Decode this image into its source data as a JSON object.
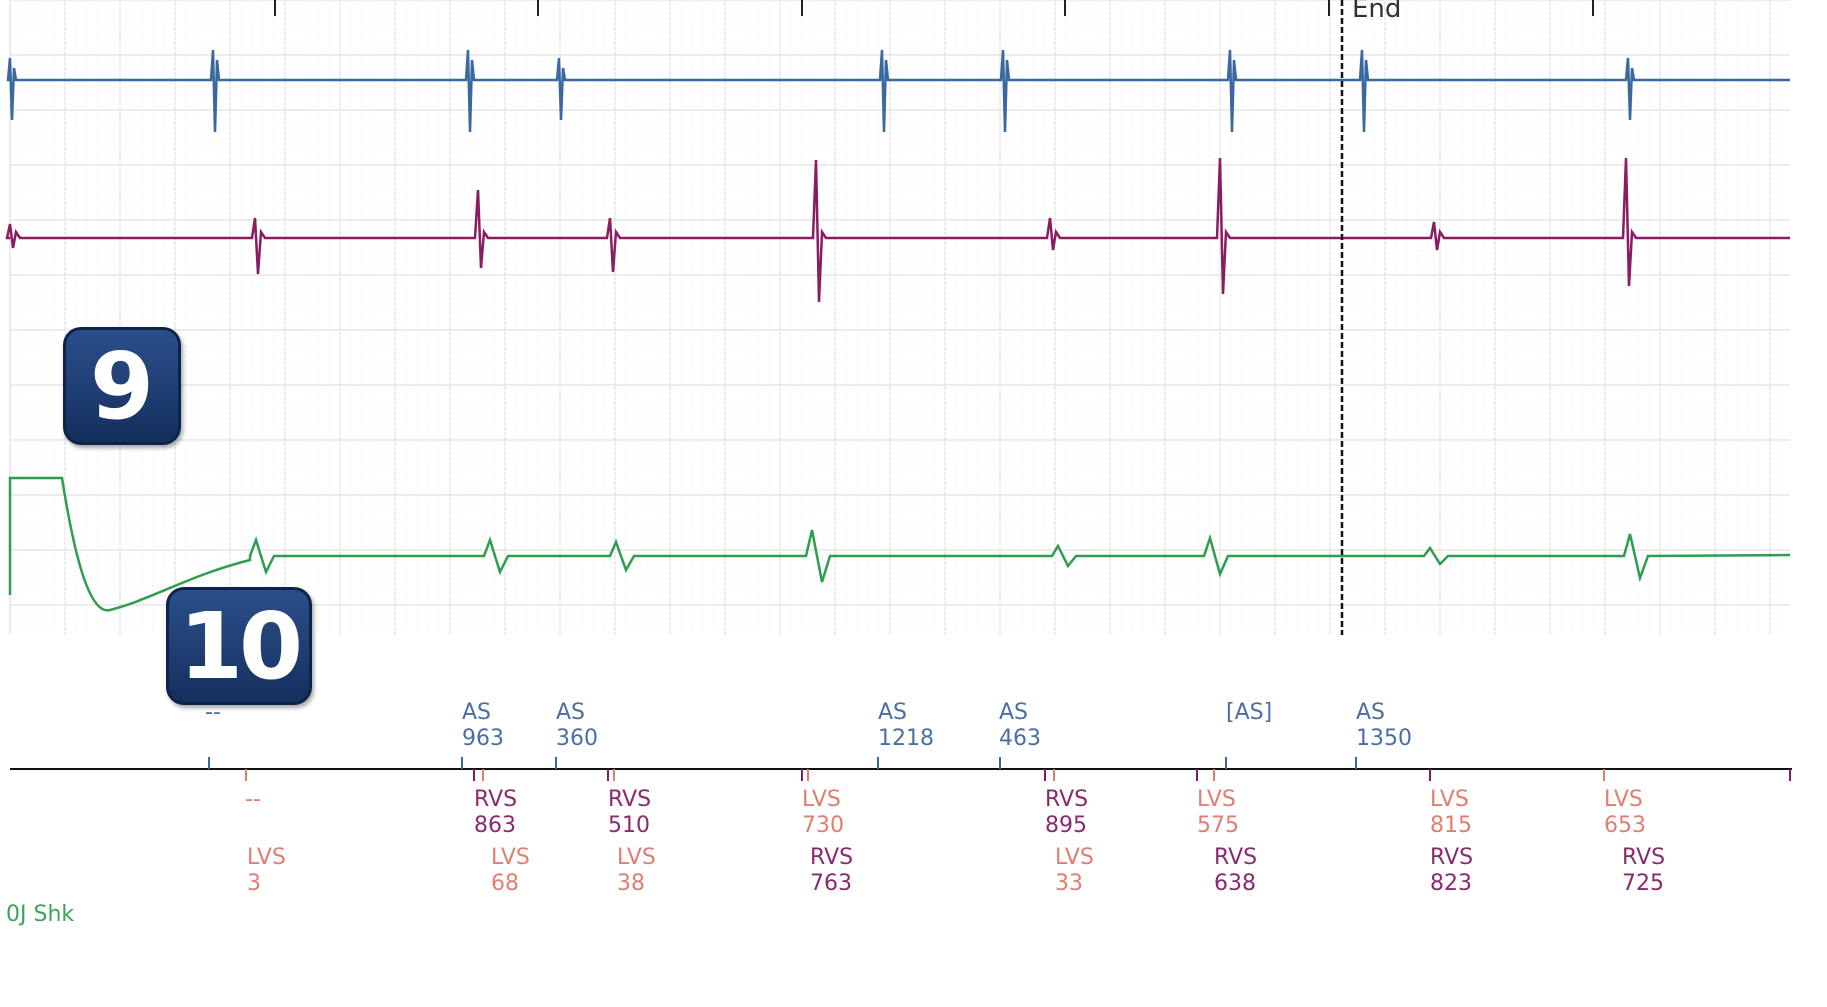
{
  "end_label": "End",
  "badges": [
    "9",
    "10"
  ],
  "channel_label": "0J Shk",
  "colors": {
    "atrial": "#3a68a0",
    "rv": "#8a1c62",
    "lv": "#e07e72",
    "shock": "#2e9e4e",
    "cursor": "#111111",
    "grid": "#d9d9d9"
  },
  "atrial_markers": [
    {
      "label": "--",
      "value": ""
    },
    {
      "label": "AS",
      "value": "963"
    },
    {
      "label": "AS",
      "value": "360"
    },
    {
      "label": "AS",
      "value": "1218"
    },
    {
      "label": "AS",
      "value": "463"
    },
    {
      "label": "[AS]",
      "value": ""
    },
    {
      "label": "AS",
      "value": "1350"
    }
  ],
  "ventricular_row1": [
    {
      "label": "--",
      "value": "",
      "kind": "lv"
    },
    {
      "label": "RVS",
      "value": "863",
      "kind": "rv"
    },
    {
      "label": "RVS",
      "value": "510",
      "kind": "rv"
    },
    {
      "label": "LVS",
      "value": "730",
      "kind": "lv"
    },
    {
      "label": "RVS",
      "value": "895",
      "kind": "rv"
    },
    {
      "label": "LVS",
      "value": "575",
      "kind": "lv"
    },
    {
      "label": "LVS",
      "value": "815",
      "kind": "lv"
    },
    {
      "label": "LVS",
      "value": "653",
      "kind": "lv"
    }
  ],
  "ventricular_row2": [
    {
      "label": "LVS",
      "value": "3",
      "kind": "lv"
    },
    {
      "label": "LVS",
      "value": "68",
      "kind": "lv"
    },
    {
      "label": "LVS",
      "value": "38",
      "kind": "lv"
    },
    {
      "label": "RVS",
      "value": "763",
      "kind": "rv"
    },
    {
      "label": "LVS",
      "value": "33",
      "kind": "lv"
    },
    {
      "label": "RVS",
      "value": "638",
      "kind": "rv"
    },
    {
      "label": "RVS",
      "value": "823",
      "kind": "rv"
    },
    {
      "label": "RVS",
      "value": "725",
      "kind": "rv"
    }
  ]
}
